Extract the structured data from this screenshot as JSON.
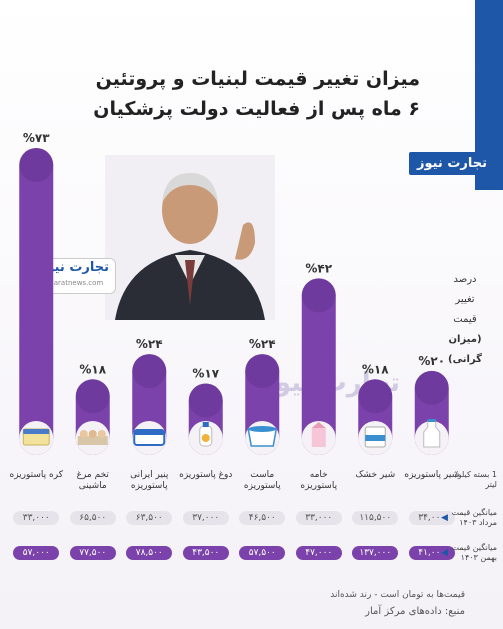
{
  "header": {
    "title_line1": "میزان تغییر قیمت لبنیات و پروتئین",
    "title_line2": "۶ ماه پس از فعالیت دولت پزشکیان",
    "brand": "تجارت نیوز"
  },
  "sidebar": {
    "line1": "درصد",
    "line2": "تغییر",
    "line3": "قیمت",
    "line4": "(میزان",
    "line5": "گرانی)"
  },
  "watermark": {
    "logo": "تجارت نیوز",
    "url": "tejaratnews.com"
  },
  "table": {
    "row_unit_label": "1 بسته کیلو/لیتر",
    "row_before_label": "میانگین قیمت مرداد ۱۴۰۳",
    "row_after_label": "میانگین قیمت بهمن ۱۴۰۳"
  },
  "colors": {
    "bar": "#7c42ab",
    "bar_dark": "#5a2a85",
    "accent_blue": "#1f57a8",
    "pill_before": "#e6e4ea",
    "pill_after": "#7c42ab"
  },
  "chart_data": {
    "type": "bar",
    "categories": [
      "کره پاستوریزه",
      "تخم مرغ ماشینی",
      "پنیر ایرانی پاستوریزه",
      "دوغ پاستوریزه",
      "ماست پاستوریزه",
      "خامه پاستوریزه",
      "شیر خشک",
      "شیر پاستوریزه"
    ],
    "values": [
      73,
      18,
      24,
      17,
      24,
      42,
      18,
      20
    ],
    "value_labels": [
      "%۷۳",
      "%۱۸",
      "%۲۴",
      "%۱۷",
      "%۲۴",
      "%۴۲",
      "%۱۸",
      "%۲۰"
    ],
    "price_before": [
      "۳۳,۰۰۰",
      "۶۵,۵۰۰",
      "۶۳,۵۰۰",
      "۳۷,۰۰۰",
      "۴۶,۵۰۰",
      "۳۳,۰۰۰",
      "۱۱۵,۵۰۰",
      "۳۴,۰۰۰"
    ],
    "price_after": [
      "۵۷,۰۰۰",
      "۷۷,۵۰۰",
      "۷۸,۵۰۰",
      "۴۳,۵۰۰",
      "۵۷,۵۰۰",
      "۴۷,۰۰۰",
      "۱۳۷,۰۰۰",
      "۴۱,۰۰۰"
    ],
    "icons": [
      "butter-icon",
      "egg-tray-icon",
      "cheese-icon",
      "doogh-bottle-icon",
      "yogurt-tub-icon",
      "cream-carton-icon",
      "milk-powder-can-icon",
      "milk-bottle-icon"
    ],
    "ylim": [
      0,
      80
    ],
    "xlabel": "",
    "ylabel": ""
  },
  "footer": {
    "note": "قیمت‌ها به تومان است - رند شده‌اند",
    "source": "منبع: داده‌های مرکز آمار"
  }
}
